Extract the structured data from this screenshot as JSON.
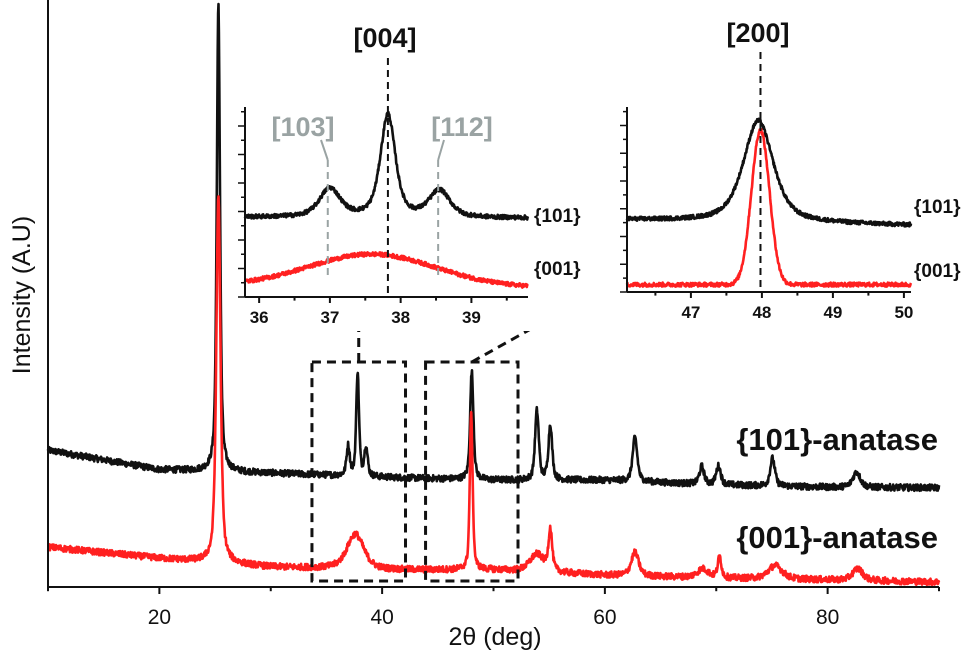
{
  "chart_data": [
    {
      "type": "line",
      "xlabel": "2θ (deg)",
      "ylabel": "Intensity (A.U)",
      "xlim": [
        10,
        90
      ],
      "ylim": [
        0,
        100
      ],
      "x_ticks": [
        20,
        40,
        60,
        80
      ],
      "x_minor_ticks": [
        10,
        30,
        50,
        70,
        90
      ],
      "y_ticks_shown": false,
      "grid": false,
      "series": [
        {
          "name": "{101}-anatase",
          "color": "#111111",
          "baseline": [
            [
              10,
              23.3
            ],
            [
              20,
              20
            ],
            [
              30,
              19.4
            ],
            [
              40,
              18.7
            ],
            [
              50,
              18.2
            ],
            [
              60,
              18.2
            ],
            [
              70,
              17.4
            ],
            [
              80,
              17
            ],
            [
              90,
              16.9
            ]
          ],
          "peaks": [
            {
              "two_theta": 25.3,
              "height": 79.4,
              "fwhm": 0.35
            },
            {
              "two_theta": 36.95,
              "height": 5,
              "fwhm": 0.35
            },
            {
              "two_theta": 37.8,
              "height": 17.7,
              "fwhm": 0.3
            },
            {
              "two_theta": 38.55,
              "height": 5,
              "fwhm": 0.35
            },
            {
              "two_theta": 48.05,
              "height": 18.4,
              "fwhm": 0.35
            },
            {
              "two_theta": 53.9,
              "height": 11.8,
              "fwhm": 0.4
            },
            {
              "two_theta": 55.1,
              "height": 9.4,
              "fwhm": 0.4
            },
            {
              "two_theta": 62.7,
              "height": 7.4,
              "fwhm": 0.5
            },
            {
              "two_theta": 68.7,
              "height": 3,
              "fwhm": 0.5
            },
            {
              "two_theta": 70.2,
              "height": 3.2,
              "fwhm": 0.5
            },
            {
              "two_theta": 75.05,
              "height": 4.7,
              "fwhm": 0.5
            },
            {
              "two_theta": 82.6,
              "height": 2.6,
              "fwhm": 0.8
            }
          ]
        },
        {
          "name": "{001}-anatase",
          "color": "#ff2020",
          "baseline": [
            [
              10,
              6.8
            ],
            [
              20,
              4.9
            ],
            [
              30,
              3.4
            ],
            [
              40,
              2.9
            ],
            [
              50,
              2.9
            ],
            [
              60,
              2
            ],
            [
              70,
              1.5
            ],
            [
              80,
              1.2
            ],
            [
              90,
              0.85
            ]
          ],
          "peaks": [
            {
              "two_theta": 25.3,
              "height": 62.6,
              "fwhm": 0.45
            },
            {
              "two_theta": 37.6,
              "height": 6,
              "fwhm": 1.8
            },
            {
              "two_theta": 48.0,
              "height": 26.6,
              "fwhm": 0.3
            },
            {
              "two_theta": 53.9,
              "height": 3,
              "fwhm": 1.5
            },
            {
              "two_theta": 55.1,
              "height": 7,
              "fwhm": 0.4
            },
            {
              "two_theta": 62.7,
              "height": 4,
              "fwhm": 0.8
            },
            {
              "two_theta": 68.8,
              "height": 1.5,
              "fwhm": 1.2
            },
            {
              "two_theta": 70.3,
              "height": 3.6,
              "fwhm": 0.4
            },
            {
              "two_theta": 75.3,
              "height": 2.3,
              "fwhm": 1.5
            },
            {
              "two_theta": 82.7,
              "height": 2,
              "fwhm": 1.1
            }
          ]
        }
      ],
      "zoom_regions": [
        [
          33.7,
          42.1
        ],
        [
          43.9,
          52.2
        ]
      ]
    },
    {
      "type": "line",
      "xlim": [
        35.8,
        39.8
      ],
      "ylim": [
        0,
        10
      ],
      "x_ticks": [
        36,
        37,
        38,
        39
      ],
      "series": [
        {
          "name": "{101}",
          "color": "#111111",
          "baseline": [
            [
              35.8,
              4.2
            ],
            [
              39.8,
              4.15
            ]
          ],
          "peaks": [
            {
              "two_theta": 37.0,
              "height": 1.5,
              "fwhm": 0.35
            },
            {
              "two_theta": 37.82,
              "height": 5.4,
              "fwhm": 0.25
            },
            {
              "two_theta": 38.55,
              "height": 1.4,
              "fwhm": 0.35
            }
          ]
        },
        {
          "name": "{001}",
          "color": "#ff2020",
          "baseline": [
            [
              35.8,
              0.6
            ],
            [
              39.8,
              0.5
            ]
          ],
          "peaks": [
            {
              "two_theta": 37.6,
              "height": 1.7,
              "fwhm": 2.1,
              "shape": "gauss"
            }
          ]
        }
      ],
      "reference_lines": [
        {
          "label": "[004]",
          "two_theta": 37.82,
          "color": "#111111"
        },
        {
          "label": "[103]",
          "two_theta": 36.97,
          "color": "#9aa3a3"
        },
        {
          "label": "[112]",
          "two_theta": 38.53,
          "color": "#9aa3a3"
        }
      ]
    },
    {
      "type": "line",
      "xlim": [
        46.1,
        50.1
      ],
      "ylim": [
        0,
        10
      ],
      "x_ticks": [
        47,
        48,
        49,
        50
      ],
      "series": [
        {
          "name": "{101}",
          "color": "#111111",
          "baseline": [
            [
              46.1,
              3.9
            ],
            [
              50.1,
              3.6
            ]
          ],
          "peaks": [
            {
              "two_theta": 47.95,
              "height": 5.5,
              "fwhm": 0.5
            }
          ]
        },
        {
          "name": "{001}",
          "color": "#ff2020",
          "baseline": [
            [
              46.1,
              0.4
            ],
            [
              50.1,
              0.4
            ]
          ],
          "peaks": [
            {
              "two_theta": 47.98,
              "height": 8.35,
              "fwhm": 0.3,
              "shape": "gauss"
            }
          ]
        }
      ],
      "reference_lines": [
        {
          "label": "[200]",
          "two_theta": 47.98,
          "color": "#111111"
        }
      ]
    }
  ]
}
